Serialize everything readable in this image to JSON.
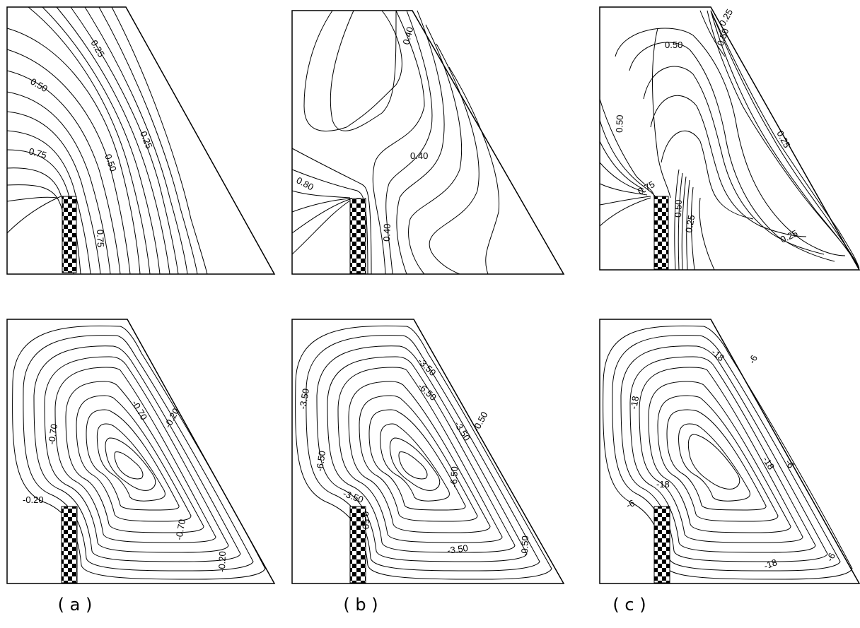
{
  "captions": [
    "( a )",
    "( b )",
    "( c )"
  ],
  "panels": [
    {
      "id": "a-top",
      "labels": [
        "0.25",
        "0.50",
        "0.75",
        "0.25",
        "0.50",
        "0.75"
      ]
    },
    {
      "id": "b-top",
      "labels": [
        "0.40",
        "0.80",
        "0.40",
        "0.40"
      ]
    },
    {
      "id": "c-top",
      "labels": [
        "0.50",
        "0.50",
        "0.25",
        "0.50",
        "0.25",
        "0.75",
        "0.50",
        "0.25",
        "0.25"
      ]
    },
    {
      "id": "a-bottom",
      "labels": [
        "-0.70",
        "-0.70",
        "-0.20",
        "-0.20",
        "-0.70",
        "-0.20"
      ]
    },
    {
      "id": "b-bottom",
      "labels": [
        "-3.50",
        "-3.50",
        "-6.50",
        "-6.50",
        "-0.50",
        "-3.50",
        "-3.50",
        "-6.50",
        "0.50",
        "-3.50",
        "-0.50"
      ]
    },
    {
      "id": "c-bottom",
      "labels": [
        "-18",
        "-18",
        "-6",
        "-18",
        "-6",
        "-18",
        "-6",
        "-18",
        "-6"
      ]
    }
  ],
  "colors": {
    "line": "#000000",
    "background": "#ffffff"
  }
}
